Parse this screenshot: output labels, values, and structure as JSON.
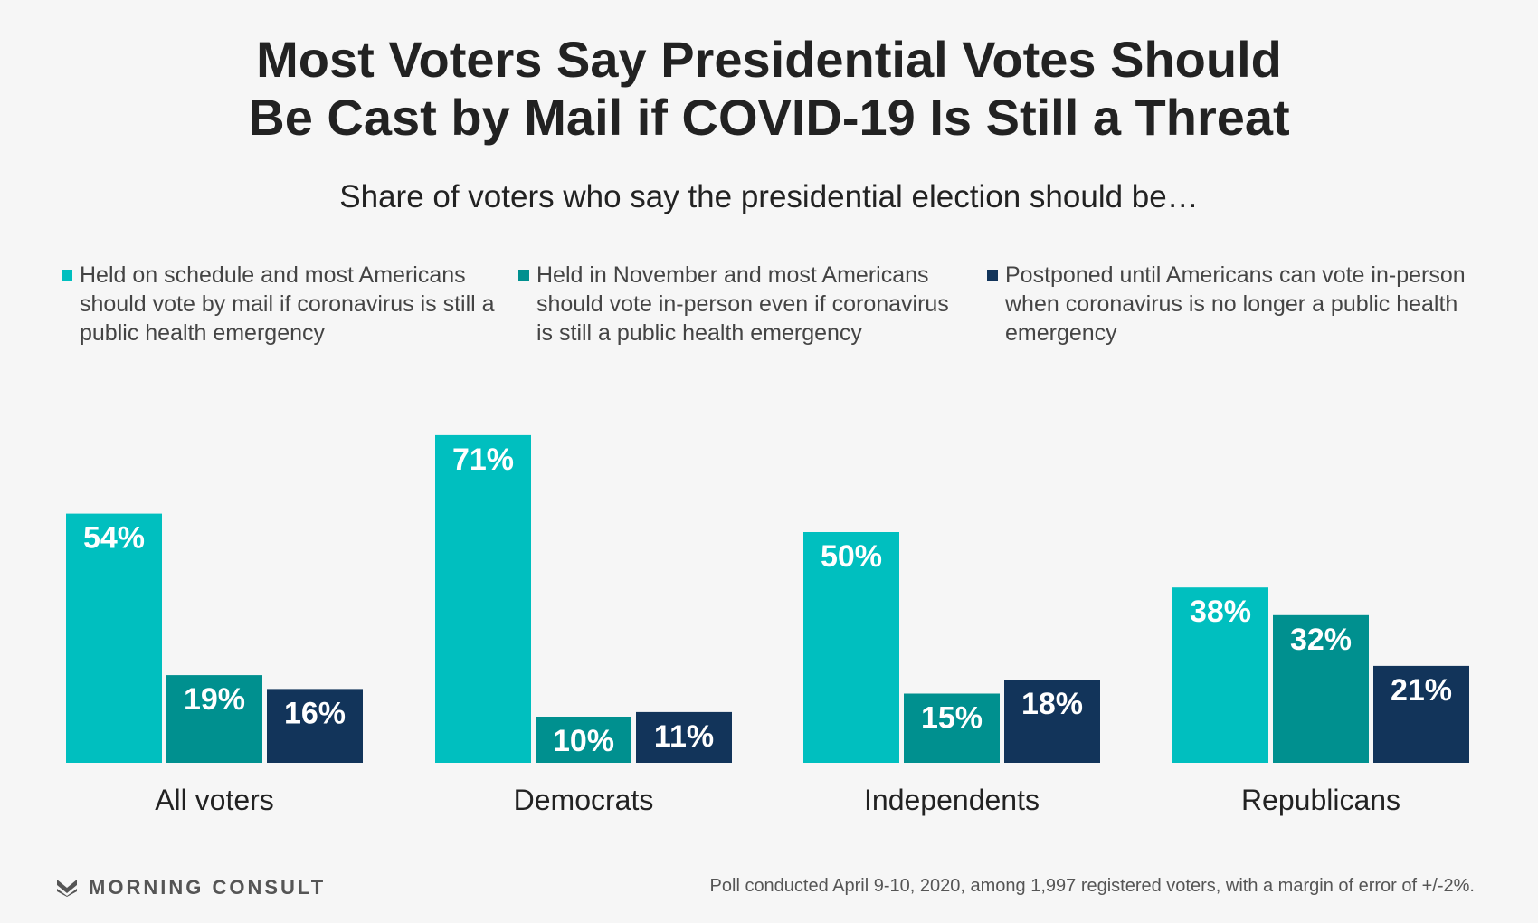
{
  "title_line1": "Most Voters Say Presidential Votes Should",
  "title_line2": "Be Cast by Mail if COVID-19 Is Still a Threat",
  "subtitle": "Share of voters who say the presidential election should be…",
  "colors": {
    "mail": "#00bfbf",
    "november": "#00908f",
    "postponed": "#12345a"
  },
  "chart_data": {
    "type": "bar",
    "categories": [
      "All voters",
      "Democrats",
      "Independents",
      "Republicans"
    ],
    "series": [
      {
        "name": "Held on schedule and most Americans should vote by mail if coronavirus is still a public health emergency",
        "values": [
          54,
          71,
          50,
          38
        ],
        "labels": [
          "54%",
          "71%",
          "50%",
          "38%"
        ],
        "color": "#00bfbf"
      },
      {
        "name": "Held in November and most Americans should vote in-person even if coronavirus is still a public health emergency",
        "values": [
          19,
          10,
          15,
          32
        ],
        "labels": [
          "19%",
          "10%",
          "15%",
          "32%"
        ],
        "color": "#00908f"
      },
      {
        "name": "Postponed until Americans can vote in-person when coronavirus is no longer a public health emergency",
        "values": [
          16,
          11,
          18,
          21
        ],
        "labels": [
          "16%",
          "11%",
          "18%",
          "21%"
        ],
        "color": "#12345a"
      }
    ],
    "ylim": [
      0,
      100
    ],
    "legend_position": "top",
    "grid": false
  },
  "brand": "MORNING CONSULT",
  "footnote": "Poll conducted April 9-10, 2020, among 1,997 registered voters, with a margin of error of +/-2%."
}
